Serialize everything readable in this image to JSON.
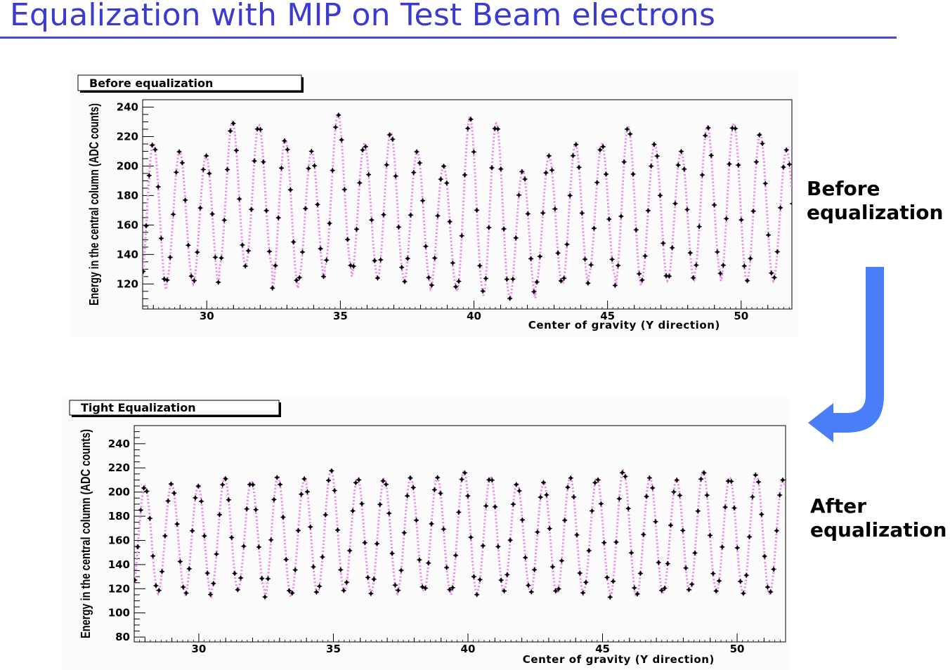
{
  "slide": {
    "title": "Equalization with MIP on Test Beam electrons",
    "label_before": "Before\nequalization",
    "label_after": "After\nequalization",
    "title_color": "#3b3bd0",
    "arrow_color": "#4a7ef8"
  },
  "chart_data": [
    {
      "type": "scatter",
      "title": "Before equalization",
      "xlabel": "Center of gravity (Y direction)",
      "ylabel": "Energy in the central column (ADC counts)",
      "xlim": [
        27.6,
        51.9
      ],
      "ylim": [
        103,
        245
      ],
      "x_ticks": [
        30,
        35,
        40,
        45,
        50
      ],
      "y_ticks": [
        120,
        140,
        160,
        180,
        200,
        220,
        240
      ],
      "grid": false,
      "legend": "none",
      "point_color": "#000000",
      "fit_color": "#ee82ee",
      "x_start": 27.62,
      "x_end": 51.92,
      "x_step": 0.1125,
      "cell_period": 0.9875,
      "cell_phase": 28.0,
      "cell_maxima": [
        216,
        210,
        207,
        230,
        228,
        218,
        210,
        235,
        215,
        223,
        210,
        200,
        233,
        229,
        197,
        207,
        215,
        215,
        227,
        215,
        210,
        227,
        229,
        222,
        211
      ],
      "cell_minima": [
        116,
        122,
        120,
        132,
        133,
        117,
        123,
        132,
        125,
        124,
        121,
        117,
        115,
        112,
        110,
        120,
        120,
        126,
        119,
        122,
        123,
        127,
        122,
        122,
        123
      ]
    },
    {
      "type": "scatter",
      "title": "Tight Equalization",
      "xlabel": "Center of gravity (Y direction)",
      "ylabel": "Energy in the central column (ADC counts)",
      "xlim": [
        27.6,
        51.8
      ],
      "ylim": [
        76,
        255
      ],
      "x_ticks": [
        30,
        35,
        40,
        45,
        50
      ],
      "y_ticks": [
        80,
        100,
        120,
        140,
        160,
        180,
        200,
        220,
        240
      ],
      "grid": false,
      "legend": "none",
      "point_color": "#000000",
      "fit_color": "#ee82ee",
      "x_start": 27.62,
      "x_end": 51.79,
      "x_step": 0.1125,
      "cell_period": 0.9875,
      "cell_phase": 28.0,
      "cell_maxima": [
        205,
        207,
        205,
        212,
        209,
        213,
        211,
        218,
        212,
        211,
        212,
        212,
        217,
        213,
        207,
        208,
        212,
        212,
        218,
        212,
        210,
        217,
        212,
        215,
        210
      ],
      "cell_minima": [
        116,
        118,
        114,
        119,
        120,
        113,
        115,
        118,
        118,
        116,
        118,
        118,
        115,
        118,
        118,
        116,
        116,
        118,
        113,
        115,
        118,
        118,
        117,
        116,
        116
      ]
    }
  ]
}
